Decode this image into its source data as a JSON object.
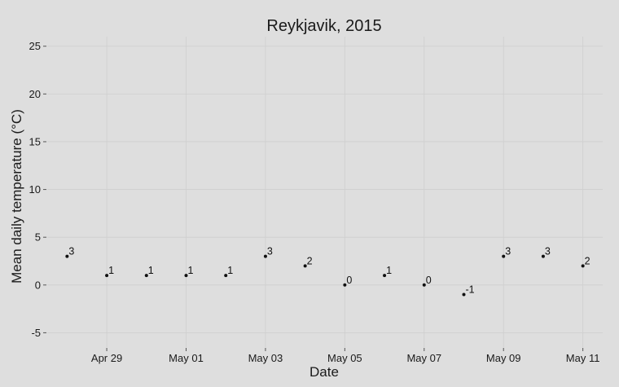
{
  "chart_data": {
    "type": "scatter",
    "title": "Reykjavik, 2015",
    "xlabel": "Date",
    "ylabel": "Mean daily temperature (°C)",
    "x": [
      "2015-04-28",
      "2015-04-29",
      "2015-04-30",
      "2015-05-01",
      "2015-05-02",
      "2015-05-03",
      "2015-05-04",
      "2015-05-05",
      "2015-05-06",
      "2015-05-07",
      "2015-05-08",
      "2015-05-09",
      "2015-05-10",
      "2015-05-11"
    ],
    "y": [
      3,
      1,
      1,
      1,
      1,
      3,
      2,
      0,
      1,
      0,
      -1,
      3,
      3,
      2
    ],
    "point_labels": [
      "3",
      "1",
      "1",
      "1",
      "1",
      "3",
      "2",
      "0",
      "1",
      "0",
      "-1",
      "3",
      "3",
      "2"
    ],
    "ylim": [
      -6.5,
      26
    ],
    "xlim": [
      "2015-04-27T12:00",
      "2015-05-11T12:00"
    ],
    "y_ticks": [
      -5,
      0,
      5,
      10,
      15,
      20,
      25
    ],
    "y_tick_labels": [
      "-5",
      "0",
      "5",
      "10",
      "15",
      "20",
      "25"
    ],
    "x_ticks": [
      "2015-04-29",
      "2015-05-01",
      "2015-05-03",
      "2015-05-05",
      "2015-05-07",
      "2015-05-09",
      "2015-05-11"
    ],
    "x_tick_labels": [
      "Apr 29",
      "May 01",
      "May 03",
      "May 05",
      "May 07",
      "May 09",
      "May 11"
    ],
    "grid": true,
    "legend": "none",
    "colors": {
      "background": "#dedede",
      "grid": "#cfcfcf",
      "point": "#111111",
      "text": "#1a1a1a"
    }
  }
}
